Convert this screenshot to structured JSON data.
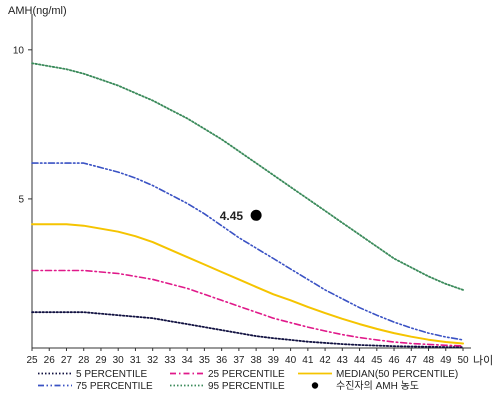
{
  "chart_data": {
    "type": "line",
    "title": "",
    "ylabel": "AMH(ng/ml)",
    "xlabel": "나이",
    "xlim": [
      25,
      50
    ],
    "ylim": [
      0,
      11
    ],
    "x_ticks": [
      25,
      26,
      27,
      28,
      29,
      30,
      31,
      32,
      33,
      34,
      35,
      36,
      37,
      38,
      39,
      40,
      41,
      42,
      43,
      44,
      45,
      46,
      47,
      48,
      49,
      50
    ],
    "y_ticks": [
      5,
      10
    ],
    "grid": false,
    "legend_position": "bottom",
    "series": [
      {
        "name": "5 PERCENTILE",
        "color": "#101040",
        "style": "dotted",
        "x": [
          25,
          26,
          27,
          28,
          29,
          30,
          31,
          32,
          33,
          34,
          35,
          36,
          37,
          38,
          39,
          40,
          41,
          42,
          43,
          44,
          45,
          46,
          47,
          48,
          49,
          50
        ],
        "y": [
          1.2,
          1.2,
          1.2,
          1.2,
          1.15,
          1.1,
          1.05,
          1.0,
          0.9,
          0.8,
          0.7,
          0.6,
          0.5,
          0.4,
          0.33,
          0.27,
          0.21,
          0.17,
          0.13,
          0.1,
          0.08,
          0.06,
          0.05,
          0.04,
          0.03,
          0.03
        ]
      },
      {
        "name": "25 PERCENTILE",
        "color": "#e0198a",
        "style": "dashdot",
        "x": [
          25,
          26,
          27,
          28,
          29,
          30,
          31,
          32,
          33,
          34,
          35,
          36,
          37,
          38,
          39,
          40,
          41,
          42,
          43,
          44,
          45,
          46,
          47,
          48,
          49,
          50
        ],
        "y": [
          2.6,
          2.6,
          2.6,
          2.6,
          2.55,
          2.5,
          2.4,
          2.3,
          2.15,
          2.0,
          1.8,
          1.6,
          1.4,
          1.2,
          1.0,
          0.85,
          0.7,
          0.57,
          0.45,
          0.35,
          0.27,
          0.2,
          0.15,
          0.12,
          0.09,
          0.07
        ]
      },
      {
        "name": "MEDIAN(50 PERCENTILE)",
        "color": "#f5c400",
        "style": "solid",
        "x": [
          25,
          26,
          27,
          28,
          29,
          30,
          31,
          32,
          33,
          34,
          35,
          36,
          37,
          38,
          39,
          40,
          41,
          42,
          43,
          44,
          45,
          46,
          47,
          48,
          49,
          50
        ],
        "y": [
          4.15,
          4.15,
          4.15,
          4.1,
          4.0,
          3.9,
          3.75,
          3.55,
          3.3,
          3.05,
          2.8,
          2.55,
          2.3,
          2.05,
          1.8,
          1.6,
          1.38,
          1.17,
          0.98,
          0.8,
          0.64,
          0.5,
          0.38,
          0.28,
          0.2,
          0.15
        ]
      },
      {
        "name": "75 PERCENTILE",
        "color": "#3a52c4",
        "style": "dashdotdot",
        "x": [
          25,
          26,
          27,
          28,
          29,
          30,
          31,
          32,
          33,
          34,
          35,
          36,
          37,
          38,
          39,
          40,
          41,
          42,
          43,
          44,
          45,
          46,
          47,
          48,
          49,
          50
        ],
        "y": [
          6.2,
          6.2,
          6.2,
          6.2,
          6.05,
          5.9,
          5.7,
          5.45,
          5.15,
          4.85,
          4.5,
          4.1,
          3.7,
          3.35,
          3.0,
          2.65,
          2.3,
          1.95,
          1.65,
          1.35,
          1.1,
          0.87,
          0.67,
          0.5,
          0.37,
          0.27
        ]
      },
      {
        "name": "95 PERCENTILE",
        "color": "#3a8a5a",
        "style": "dotted",
        "x": [
          25,
          26,
          27,
          28,
          29,
          30,
          31,
          32,
          33,
          34,
          35,
          36,
          37,
          38,
          39,
          40,
          41,
          42,
          43,
          44,
          45,
          46,
          47,
          48,
          49,
          50
        ],
        "y": [
          9.55,
          9.45,
          9.35,
          9.2,
          9.0,
          8.8,
          8.55,
          8.3,
          8.0,
          7.7,
          7.35,
          7.0,
          6.6,
          6.2,
          5.8,
          5.4,
          5.0,
          4.6,
          4.2,
          3.8,
          3.4,
          3.0,
          2.7,
          2.4,
          2.15,
          1.95
        ]
      }
    ],
    "patient_point": {
      "name": "수진자의 AMH 농도",
      "x": 38,
      "y": 4.45,
      "label": "4.45",
      "color": "#000000"
    },
    "legend_rows": [
      [
        "5 PERCENTILE",
        "25 PERCENTILE",
        "MEDIAN(50 PERCENTILE)"
      ],
      [
        "75 PERCENTILE",
        "95 PERCENTILE",
        "수진자의 AMH 농도"
      ]
    ]
  }
}
